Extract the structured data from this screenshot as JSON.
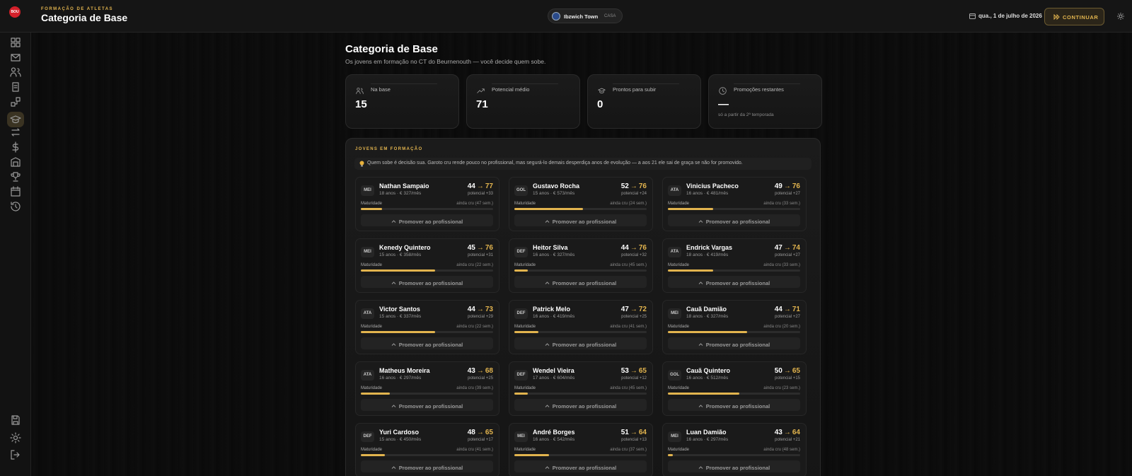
{
  "header": {
    "logo": "BOU",
    "eyebrow": "FORMAÇÃO DE ATLETAS",
    "title": "Categoria de Base",
    "club": "Ibzwich Town",
    "venue": "CASA",
    "date": "qua., 1 de julho de 2026",
    "continue": "CONTINUAR"
  },
  "page": {
    "title": "Categoria de Base",
    "subtitle": "Os jovens em formação no CT do Beurnenouth — você decide quem sobe."
  },
  "stats": [
    {
      "label": "Na base",
      "value": 15
    },
    {
      "label": "Potencial médio",
      "value": 71
    },
    {
      "label": "Prontos para subir",
      "value": 0
    },
    {
      "label": "Promoções restantes",
      "value": "—",
      "note": "só a partir da 2ª temporada"
    }
  ],
  "section": {
    "title": "JOVENS EM FORMAÇÃO",
    "tip": "Quem sobe é decisão sua. Garoto cru rende pouco no profissional, mas segurá-lo demais desperdiça anos de evolução — a aos 21 ele sai de graça se não for promovido."
  },
  "labels": {
    "arrow": "→",
    "maturity": "Maturidade",
    "promote": "Promover ao profissional"
  },
  "players": [
    {
      "pos": "MEI",
      "name": "Nathan Sampaio",
      "info": "18 anos · € 327/mês",
      "current": 44,
      "potential": 77,
      "gain": "potencial +33",
      "status": "ainda cru (47 sem.)",
      "maturity": 16
    },
    {
      "pos": "GOL",
      "name": "Gustavo Rocha",
      "info": "15 anos · € 573/mês",
      "current": 52,
      "potential": 76,
      "gain": "potencial +24",
      "status": "ainda cru (24 sem.)",
      "maturity": 52
    },
    {
      "pos": "ATA",
      "name": "Vinicius Pacheco",
      "info": "16 anos · € 481/mês",
      "current": 49,
      "potential": 76,
      "gain": "potencial +27",
      "status": "ainda cru (33 sem.)",
      "maturity": 34
    },
    {
      "pos": "MEI",
      "name": "Kenedy Quintero",
      "info": "15 anos · € 358/mês",
      "current": 45,
      "potential": 76,
      "gain": "potencial +31",
      "status": "ainda cru (22 sem.)",
      "maturity": 56
    },
    {
      "pos": "DEF",
      "name": "Heitor Silva",
      "info": "16 anos · € 327/mês",
      "current": 44,
      "potential": 76,
      "gain": "potencial +32",
      "status": "ainda cru (45 sem.)",
      "maturity": 10
    },
    {
      "pos": "ATA",
      "name": "Endrick Vargas",
      "info": "18 anos · € 419/mês",
      "current": 47,
      "potential": 74,
      "gain": "potencial +27",
      "status": "ainda cru (33 sem.)",
      "maturity": 34
    },
    {
      "pos": "ATA",
      "name": "Victor Santos",
      "info": "15 anos · € 337/mês",
      "current": 44,
      "potential": 73,
      "gain": "potencial +29",
      "status": "ainda cru (22 sem.)",
      "maturity": 56
    },
    {
      "pos": "DEF",
      "name": "Patrick Melo",
      "info": "16 anos · € 419/mês",
      "current": 47,
      "potential": 72,
      "gain": "potencial +25",
      "status": "ainda cru (41 sem.)",
      "maturity": 18
    },
    {
      "pos": "MEI",
      "name": "Cauã Damião",
      "info": "18 anos · € 327/mês",
      "current": 44,
      "potential": 71,
      "gain": "potencial +27",
      "status": "ainda cru (20 sem.)",
      "maturity": 60
    },
    {
      "pos": "ATA",
      "name": "Matheus Moreira",
      "info": "16 anos · € 297/mês",
      "current": 43,
      "potential": 68,
      "gain": "potencial +25",
      "status": "ainda cru (39 sem.)",
      "maturity": 22
    },
    {
      "pos": "DEF",
      "name": "Wendel Vieira",
      "info": "17 anos · € 604/mês",
      "current": 53,
      "potential": 65,
      "gain": "potencial +12",
      "status": "ainda cru (45 sem.)",
      "maturity": 10
    },
    {
      "pos": "GOL",
      "name": "Cauã Quintero",
      "info": "16 anos · € 512/mês",
      "current": 50,
      "potential": 65,
      "gain": "potencial +15",
      "status": "ainda cru (23 sem.)",
      "maturity": 54
    },
    {
      "pos": "DEF",
      "name": "Yuri Cardoso",
      "info": "15 anos · € 450/mês",
      "current": 48,
      "potential": 65,
      "gain": "potencial +17",
      "status": "ainda cru (41 sem.)",
      "maturity": 18
    },
    {
      "pos": "MEI",
      "name": "André Borges",
      "info": "16 anos · € 542/mês",
      "current": 51,
      "potential": 64,
      "gain": "potencial +13",
      "status": "ainda cru (37 sem.)",
      "maturity": 26
    },
    {
      "pos": "MEI",
      "name": "Luan Damião",
      "info": "16 anos · € 297/mês",
      "current": 43,
      "potential": 64,
      "gain": "potencial +21",
      "status": "ainda cru (48 sem.)",
      "maturity": 4
    }
  ]
}
